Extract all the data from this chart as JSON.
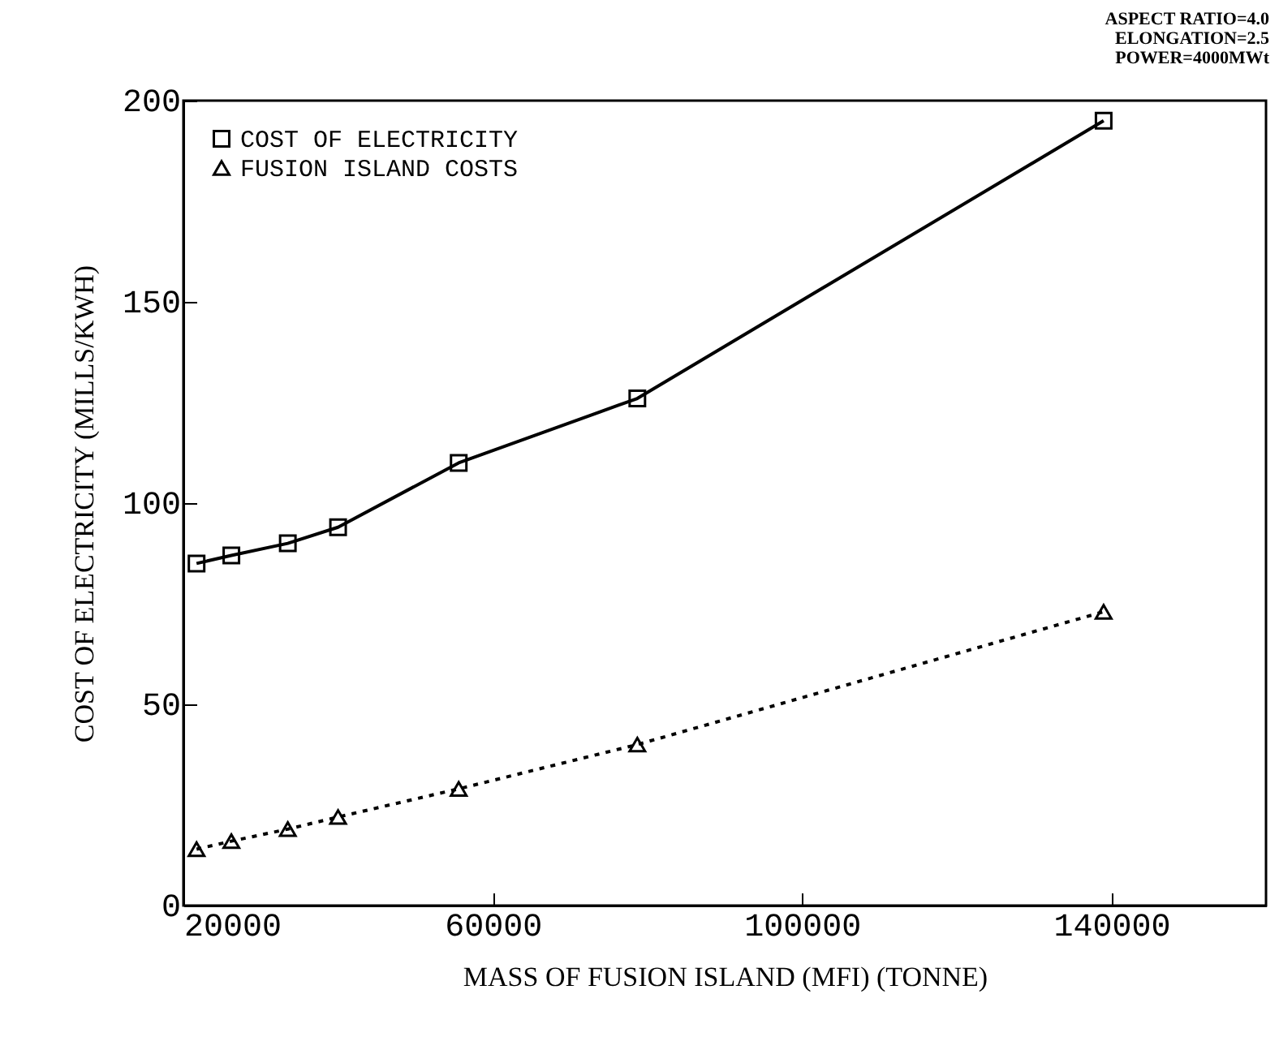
{
  "chart_data": {
    "type": "line",
    "xlabel": "MASS OF FUSION ISLAND (MFI) (TONNE)",
    "ylabel": "COST OF ELECTRICITY (MILLS/KWH)",
    "x": [
      21700,
      26200,
      33500,
      40000,
      55600,
      78700,
      139000
    ],
    "series": [
      {
        "name": "COST OF ELECTRICITY",
        "color": "#000000",
        "marker": "square",
        "line_style": "solid",
        "values": [
          85,
          87,
          90,
          94,
          110,
          126,
          195
        ]
      },
      {
        "name": "FUSION ISLAND COSTS",
        "color": "#000000",
        "marker": "triangle",
        "line_style": "dotted",
        "values": [
          14,
          16,
          19,
          22,
          29,
          40,
          73
        ]
      }
    ],
    "xlim": [
      20000,
      160000
    ],
    "xticks": [
      20000,
      60000,
      100000,
      140000
    ],
    "ylim": [
      0,
      200
    ],
    "yticks": [
      0,
      50,
      100,
      150,
      200
    ],
    "grid": false,
    "legend": "top left",
    "annotations": [
      "ASPECT RATIO=4.0",
      "ELONGATION=2.5",
      "POWER=4000MWt"
    ]
  }
}
